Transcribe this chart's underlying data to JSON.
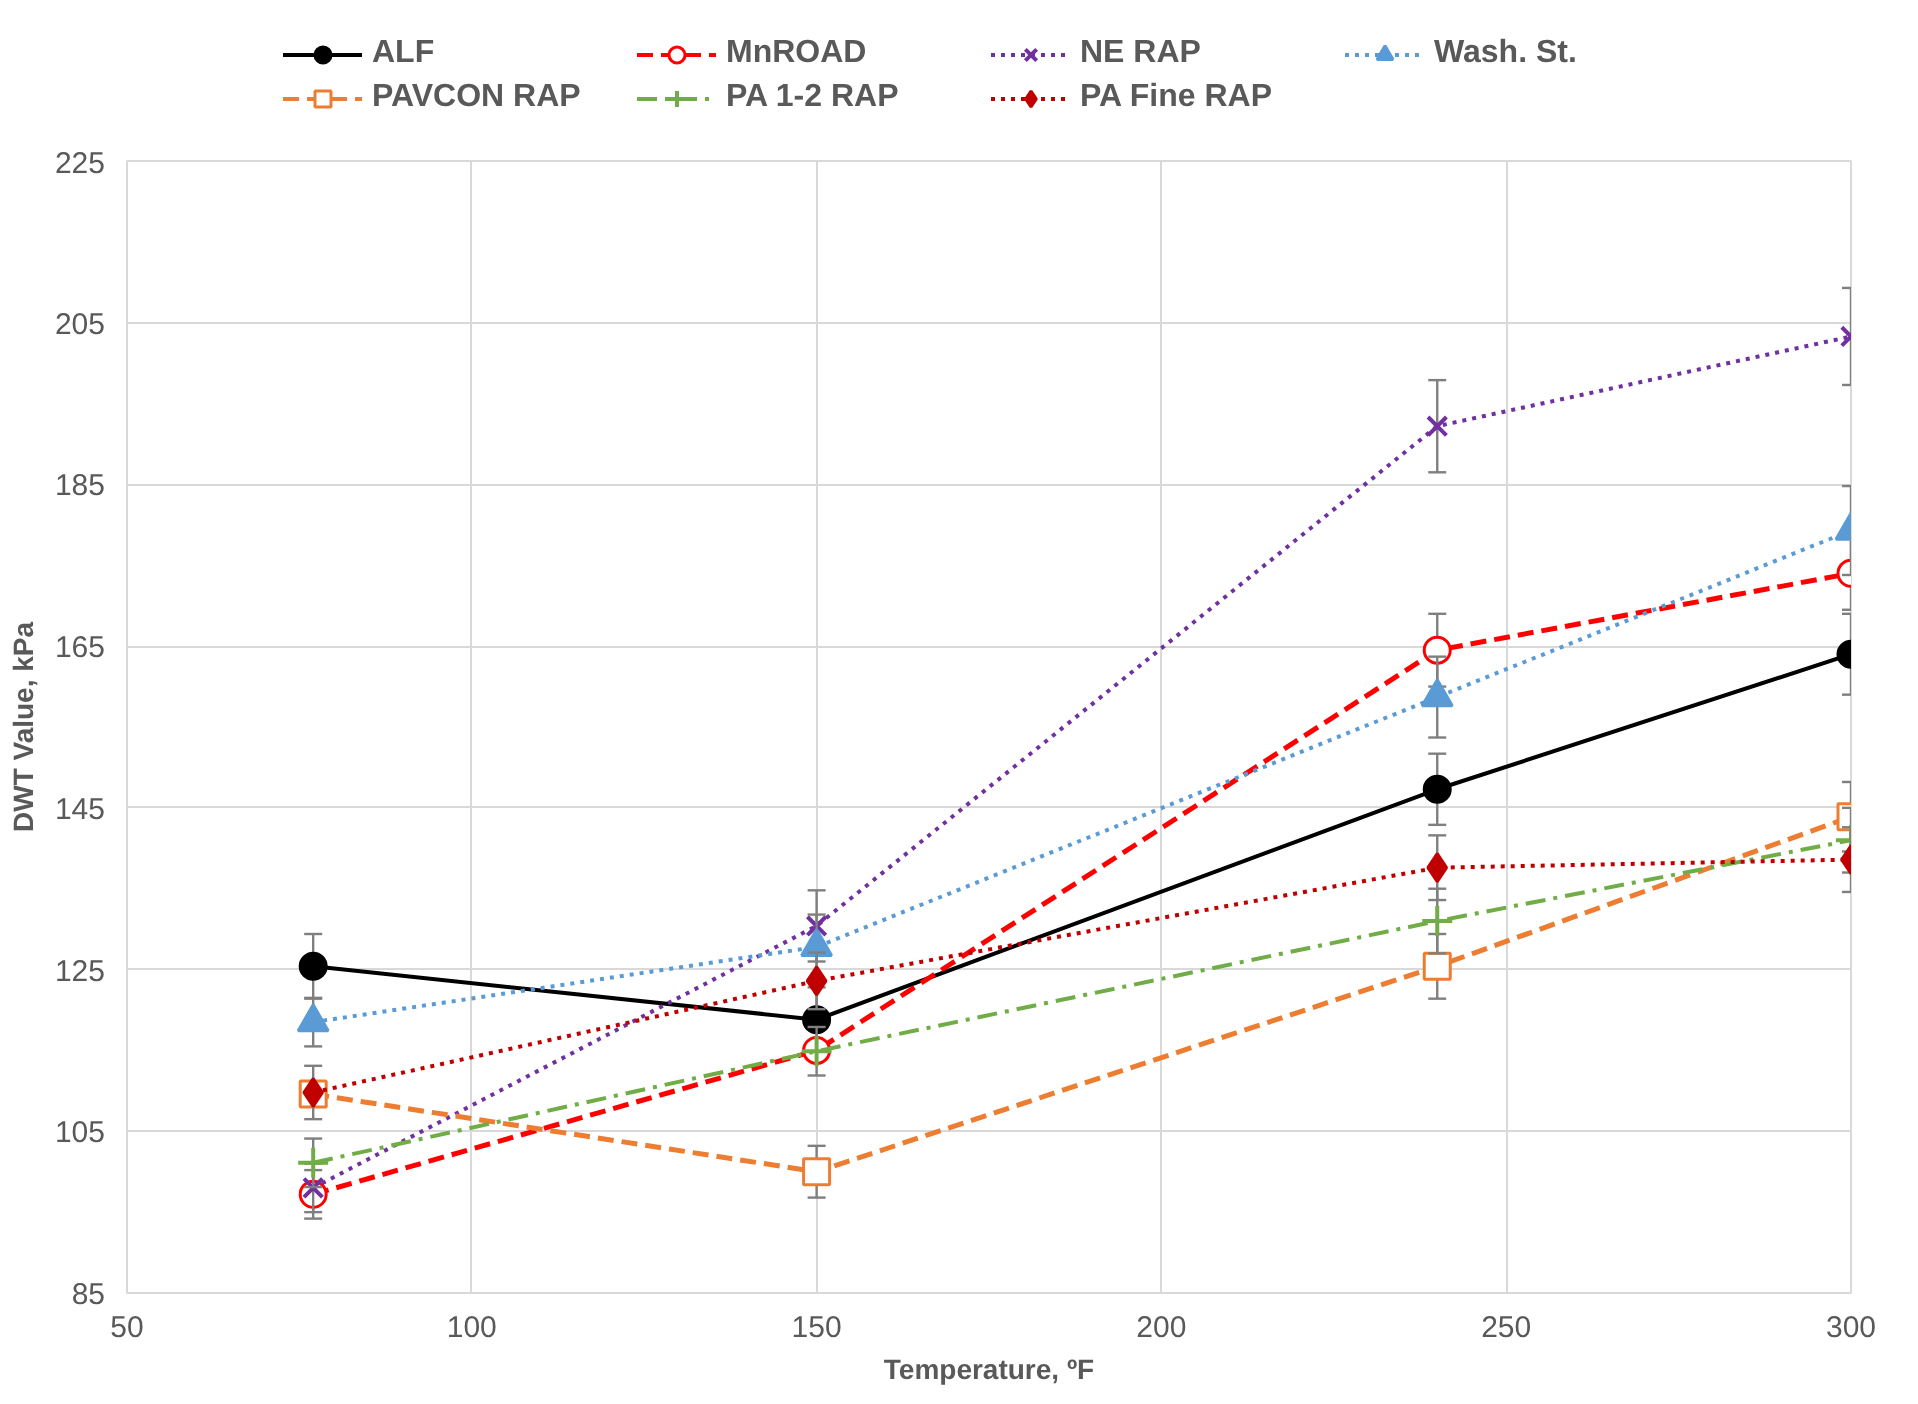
{
  "chart_data": {
    "type": "line",
    "xlabel": "Temperature, ºF",
    "ylabel": "DWT Value, kPa",
    "x": [
      77,
      150,
      240,
      300
    ],
    "xlim": [
      50,
      300
    ],
    "xticks": [
      50,
      100,
      150,
      200,
      250,
      300
    ],
    "ylim": [
      85,
      225
    ],
    "yticks": [
      85,
      105,
      125,
      145,
      165,
      185,
      205,
      225
    ],
    "grid": true,
    "legend": "top",
    "series": [
      {
        "name": "ALF",
        "color": "#000000",
        "marker": "circle",
        "line_style": "solid",
        "values": [
          125.4,
          118.8,
          147.3,
          164
        ],
        "errors": [
          4,
          4,
          4.4,
          5
        ]
      },
      {
        "name": "MnROAD",
        "color": "#ff0000",
        "marker": "circle_open",
        "line_style": "dashed",
        "values": [
          97.2,
          115,
          164.5,
          174
        ],
        "errors": [
          3,
          null,
          4.5,
          4.5
        ]
      },
      {
        "name": "NE RAP",
        "color": "#7030a0",
        "marker": "cross",
        "line_style": "dotted",
        "values": [
          98,
          130.4,
          192.2,
          203.3
        ],
        "errors": [
          3,
          4.4,
          5.7,
          6
        ]
      },
      {
        "name": "Wash. St.",
        "color": "#5b9bd5",
        "marker": "triangle",
        "line_style": "dotted",
        "values": [
          118.5,
          127.8,
          158.7,
          179.3
        ],
        "errors": [
          3,
          4,
          5,
          5.5
        ]
      },
      {
        "name": "PAVCON RAP",
        "color": "#ed7d31",
        "marker": "square_open",
        "line_style": "dashed",
        "values": [
          109.6,
          100,
          125.4,
          143.9
        ],
        "errors": [
          null,
          3.2,
          4,
          4.3
        ]
      },
      {
        "name": "PA 1-2 RAP",
        "color": "#70ad47",
        "marker": "plus",
        "line_style": "dashdot",
        "values": [
          101.1,
          114.9,
          131,
          141
        ],
        "errors": [
          3,
          3,
          4,
          4
        ]
      },
      {
        "name": "PA Fine RAP",
        "color": "#c00000",
        "marker": "diamond",
        "line_style": "dotted",
        "values": [
          109.8,
          123.6,
          137.6,
          138.6
        ],
        "errors": [
          3.3,
          3.5,
          4,
          4
        ]
      }
    ]
  }
}
